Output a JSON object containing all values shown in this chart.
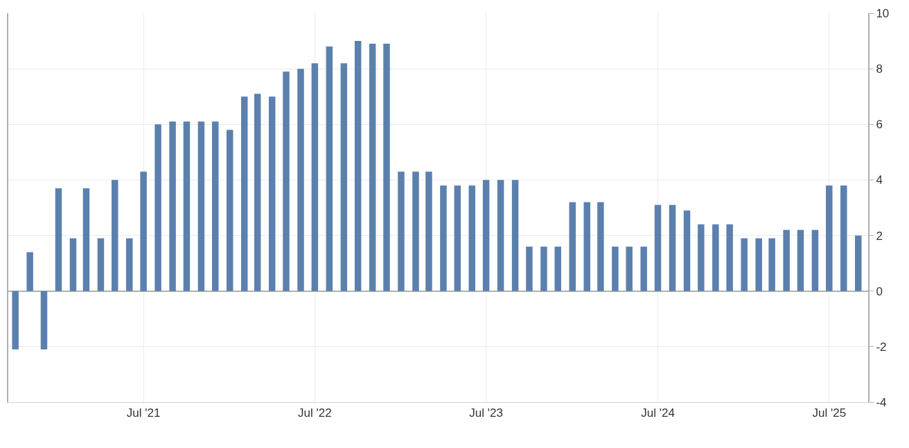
{
  "chart_data": {
    "type": "bar",
    "x": [
      "2020-10",
      "2020-11",
      "2020-12",
      "2021-01",
      "2021-02",
      "2021-03",
      "2021-04",
      "2021-05",
      "2021-06",
      "2021-07",
      "2021-08",
      "2021-09",
      "2021-10",
      "2021-11",
      "2021-12",
      "2022-01",
      "2022-02",
      "2022-03",
      "2022-04",
      "2022-05",
      "2022-06",
      "2022-07",
      "2022-08",
      "2022-09",
      "2022-10",
      "2022-11",
      "2022-12",
      "2023-01",
      "2023-02",
      "2023-03",
      "2023-04",
      "2023-05",
      "2023-06",
      "2023-07",
      "2023-08",
      "2023-09",
      "2023-10",
      "2023-11",
      "2023-12",
      "2024-01",
      "2024-02",
      "2024-03",
      "2024-04",
      "2024-05",
      "2024-06",
      "2024-07",
      "2024-08",
      "2024-09",
      "2024-10",
      "2024-11",
      "2024-12",
      "2025-01",
      "2025-02",
      "2025-03",
      "2025-04",
      "2025-05",
      "2025-06",
      "2025-07",
      "2025-08",
      "2025-09"
    ],
    "values": [
      -2.1,
      1.4,
      -2.1,
      3.7,
      1.9,
      3.7,
      1.9,
      4.0,
      1.9,
      4.3,
      6.0,
      6.1,
      6.1,
      6.1,
      6.1,
      5.8,
      7.0,
      7.1,
      7.0,
      7.9,
      8.0,
      8.2,
      8.8,
      8.2,
      9.0,
      8.9,
      8.9,
      4.3,
      4.3,
      4.3,
      3.8,
      3.8,
      3.8,
      4.0,
      4.0,
      4.0,
      1.6,
      1.6,
      1.6,
      3.2,
      3.2,
      3.2,
      1.6,
      1.6,
      1.6,
      3.1,
      3.1,
      2.9,
      2.4,
      2.4,
      2.4,
      1.9,
      1.9,
      1.9,
      2.2,
      2.2,
      2.2,
      3.8,
      3.8,
      2.0
    ],
    "color": "#5b80ae",
    "xlim": [
      "2020-09-16",
      "2025-09-22"
    ],
    "xticks": [
      {
        "value": "2021-07",
        "label": "Jul '21"
      },
      {
        "value": "2022-07",
        "label": "Jul '22"
      },
      {
        "value": "2023-07",
        "label": "Jul '23"
      },
      {
        "value": "2024-07",
        "label": "Jul '24"
      },
      {
        "value": "2025-07",
        "label": "Jul '25"
      }
    ],
    "ylim": [
      -4,
      10
    ],
    "yticks": [
      -4,
      -2,
      0,
      2,
      4,
      6,
      8,
      10
    ],
    "grid": true
  }
}
